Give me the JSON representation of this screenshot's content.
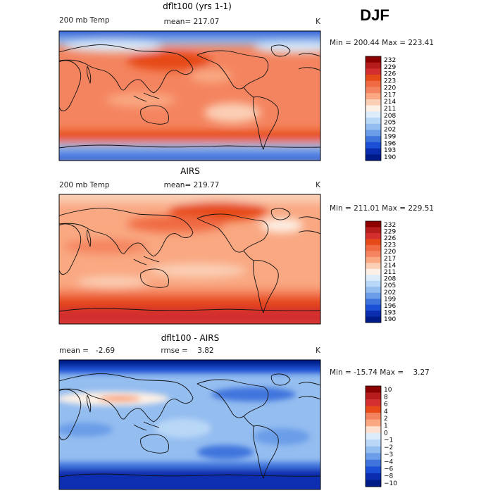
{
  "season": "DJF",
  "chart_data": [
    {
      "type": "heatmap",
      "title": "dflt100 (yrs 1-1)",
      "left_label": "200 mb Temp",
      "center_label": "mean= 217.07",
      "units": "K",
      "stats": "Min = 200.44 Max = 223.41",
      "colorbar_ticks": [
        "232",
        "229",
        "226",
        "223",
        "220",
        "217",
        "214",
        "211",
        "208",
        "205",
        "202",
        "199",
        "196",
        "193",
        "190"
      ],
      "colorbar_colors": [
        "#8b0000",
        "#b71c1c",
        "#d32f2f",
        "#e64a19",
        "#f06b43",
        "#f4845f",
        "#f9a882",
        "#fbcfb5",
        "#fdf0e6",
        "#dcecfb",
        "#b9d7f7",
        "#94bdf0",
        "#6b9de8",
        "#3f74dd",
        "#1a4fd6",
        "#0a2db0",
        "#001a88"
      ],
      "min": 200.44,
      "max": 223.41,
      "mean": 217.07
    },
    {
      "type": "heatmap",
      "title": "AIRS",
      "left_label": "200 mb Temp",
      "center_label": "mean= 219.77",
      "units": "K",
      "stats": "Min = 211.01 Max = 229.51",
      "colorbar_ticks": [
        "232",
        "229",
        "226",
        "223",
        "220",
        "217",
        "214",
        "211",
        "208",
        "205",
        "202",
        "199",
        "196",
        "193",
        "190"
      ],
      "colorbar_colors": [
        "#8b0000",
        "#b71c1c",
        "#d32f2f",
        "#e64a19",
        "#f06b43",
        "#f4845f",
        "#f9a882",
        "#fbcfb5",
        "#fdf0e6",
        "#dcecfb",
        "#b9d7f7",
        "#94bdf0",
        "#6b9de8",
        "#3f74dd",
        "#1a4fd6",
        "#0a2db0",
        "#001a88"
      ],
      "min": 211.01,
      "max": 229.51,
      "mean": 219.77
    },
    {
      "type": "heatmap",
      "title": "dflt100 - AIRS",
      "left_label": "mean =   -2.69",
      "center_label": "rmse =    3.82",
      "units": "K",
      "stats": "Min = -15.74 Max =    3.27",
      "colorbar_ticks": [
        "10",
        "8",
        "6",
        "4",
        "2",
        "1",
        "0",
        "-1",
        "-2",
        "-3",
        "-4",
        "-6",
        "-8",
        "-10"
      ],
      "colorbar_colors": [
        "#8b0000",
        "#b71c1c",
        "#d32f2f",
        "#e64a19",
        "#f4845f",
        "#f9a882",
        "#fde0d0",
        "#dcecfb",
        "#b9d7f7",
        "#94bdf0",
        "#6b9de8",
        "#3f74dd",
        "#1a4fd6",
        "#0a2db0",
        "#001a88"
      ],
      "min": -15.74,
      "max": 3.27,
      "mean": -2.69,
      "rmse": 3.82
    }
  ]
}
